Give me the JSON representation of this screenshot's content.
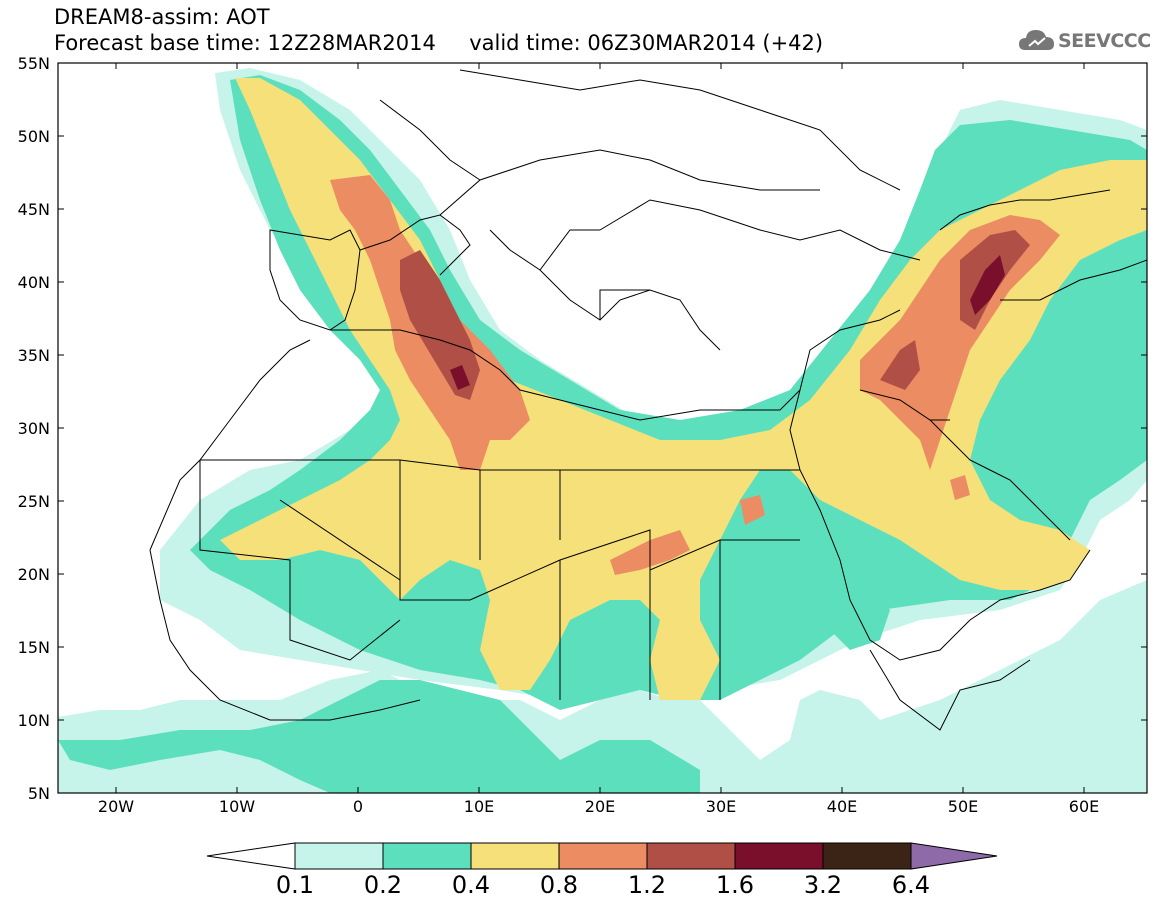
{
  "header": {
    "title_line1": "DREAM8-assim: AOT",
    "title_line2": "Forecast base time: 12Z28MAR2014     valid time: 06Z30MAR2014 (+42)",
    "logo_text": "SEEVCCC"
  },
  "map": {
    "lat_labels": [
      "55N",
      "50N",
      "45N",
      "40N",
      "35N",
      "30N",
      "25N",
      "20N",
      "15N",
      "10N",
      "5N"
    ],
    "lon_labels": [
      "20W",
      "10W",
      "0",
      "10E",
      "20E",
      "30E",
      "40E",
      "50E",
      "60E"
    ],
    "extent": {
      "lon_min": -25,
      "lon_max": 65,
      "lat_min": 5,
      "lat_max": 55
    }
  },
  "colorbar": {
    "labels": [
      "0.1",
      "0.2",
      "0.4",
      "0.8",
      "1.2",
      "1.6",
      "3.2",
      "6.4"
    ],
    "colors": [
      "#ffffff",
      "#c6f3ea",
      "#5cdfbc",
      "#f5e07a",
      "#eb8c62",
      "#b04f45",
      "#7a0f2c",
      "#3b2315",
      "#8e6aa8"
    ]
  },
  "aot_colors": {
    "c01": "#c6f3ea",
    "c02": "#5cdfbc",
    "c04": "#f5e07a",
    "c08": "#eb8c62",
    "c12": "#b04f45",
    "c16": "#7a0f2c"
  }
}
